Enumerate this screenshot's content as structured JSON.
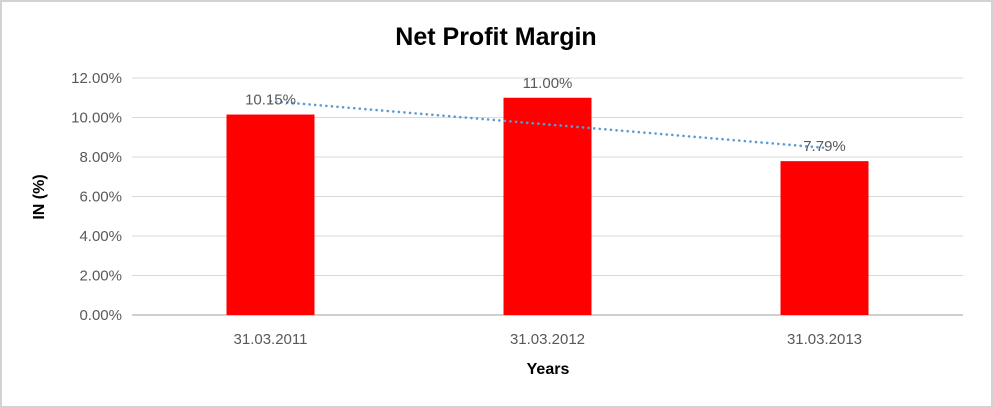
{
  "window": {
    "background": "#ffffff",
    "border_color": "#d2d2d2"
  },
  "chart_data": {
    "type": "bar",
    "title": "Net Profit Margin",
    "categories": [
      "31.03.2011",
      "31.03.2012",
      "31.03.2013"
    ],
    "series": [
      {
        "name": "Net Profit Margin",
        "values": [
          10.15,
          11.0,
          7.79
        ]
      }
    ],
    "value_labels": [
      "10.15%",
      "11.00%",
      "7.79%"
    ],
    "xlabel": "Years",
    "ylabel": "IN (%)",
    "ylim": [
      0,
      12
    ],
    "ytick_step": 2,
    "ytick_labels": [
      "0.00%",
      "2.00%",
      "4.00%",
      "6.00%",
      "8.00%",
      "10.00%",
      "12.00%"
    ],
    "grid": true,
    "legend_position": "none",
    "bar_color": "#ff0000",
    "trendline": {
      "type": "linear",
      "style": "dotted",
      "color": "#5b9bd5",
      "fitted_values": [
        10.83,
        9.65,
        8.47
      ]
    },
    "colors": {
      "title_text": "#404040",
      "axis_title_text": "#404040",
      "tick_text": "#595959",
      "value_label_text": "#595959",
      "gridline": "#d9d9d9",
      "axis_line": "#bfbfbf"
    }
  }
}
